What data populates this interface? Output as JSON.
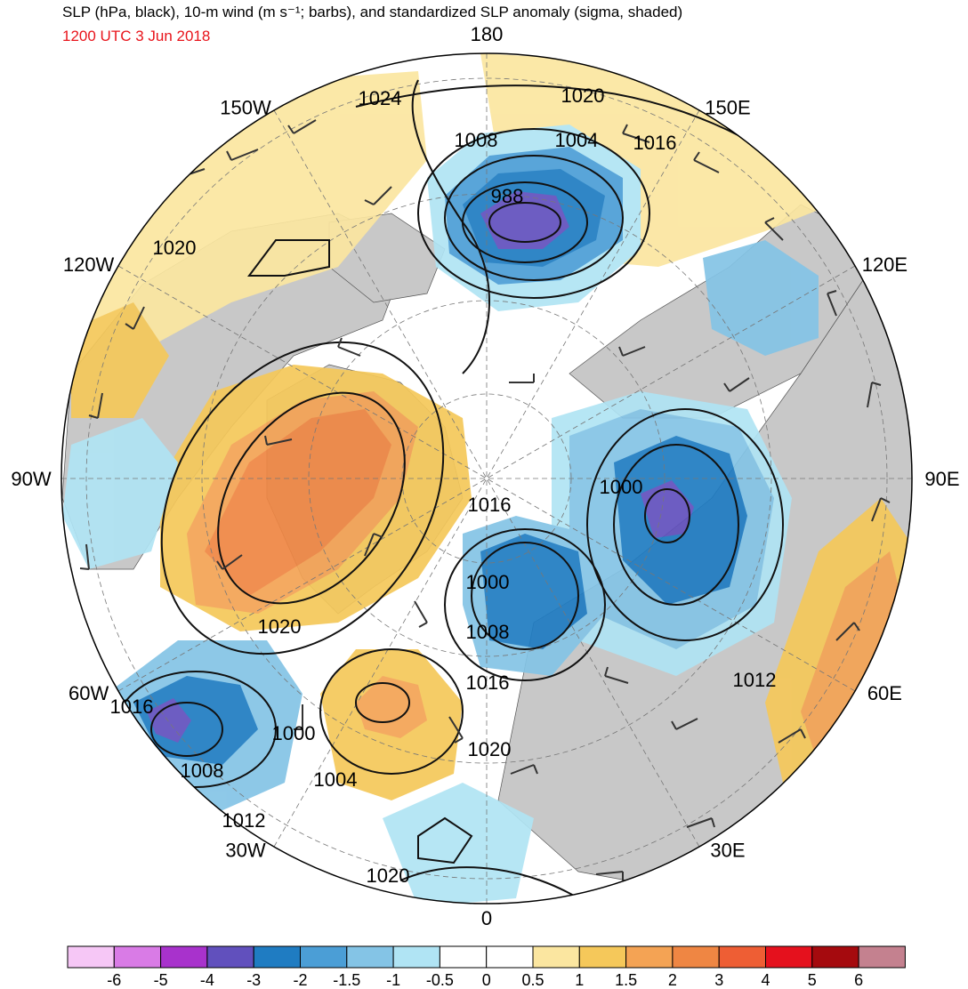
{
  "title": "SLP (hPa, black), 10-m wind (m s⁻¹; barbs), and standardized SLP anomaly (sigma, shaded)",
  "valid_time": "1200 UTC 3 Jun 2018",
  "projection": "north-polar-stereographic",
  "longitude_labels": [
    {
      "text": "180",
      "lon": 180
    },
    {
      "text": "150E",
      "lon": 150
    },
    {
      "text": "120E",
      "lon": 120
    },
    {
      "text": "90E",
      "lon": 90
    },
    {
      "text": "60E",
      "lon": 60
    },
    {
      "text": "30E",
      "lon": 30
    },
    {
      "text": "0",
      "lon": 0
    },
    {
      "text": "30W",
      "lon": -30
    },
    {
      "text": "60W",
      "lon": -60
    },
    {
      "text": "90W",
      "lon": -90
    },
    {
      "text": "120W",
      "lon": -120
    },
    {
      "text": "150W",
      "lon": -150
    }
  ],
  "isobar_labels": [
    "1024",
    "1020",
    "1008",
    "1004",
    "1016",
    "988",
    "1020",
    "1000",
    "1016",
    "1000",
    "1008",
    "1016",
    "1020",
    "1016",
    "1000",
    "1008",
    "1004",
    "1020",
    "1012",
    "1012",
    "1020"
  ],
  "colorbar": {
    "colors": [
      "#f6c7f6",
      "#d97be6",
      "#a832cc",
      "#6150bd",
      "#1f7cc2",
      "#4b9ed6",
      "#84c4e6",
      "#b0e4f4",
      "#ffffff",
      "#ffffff",
      "#fbe6a0",
      "#f5c85a",
      "#f4a354",
      "#ef8643",
      "#ee5e34",
      "#e5111d",
      "#a50a0e",
      "#c4818f"
    ],
    "ticks": [
      "-6",
      "-5",
      "-4",
      "-3",
      "-2",
      "-1.5",
      "-1",
      "-0.5",
      "0",
      "0.5",
      "1",
      "1.5",
      "2",
      "3",
      "4",
      "5",
      "6"
    ]
  },
  "colors": {
    "land": "#c8c8c8",
    "ocean": "#ffffff",
    "valid_time": "#e8141b"
  }
}
